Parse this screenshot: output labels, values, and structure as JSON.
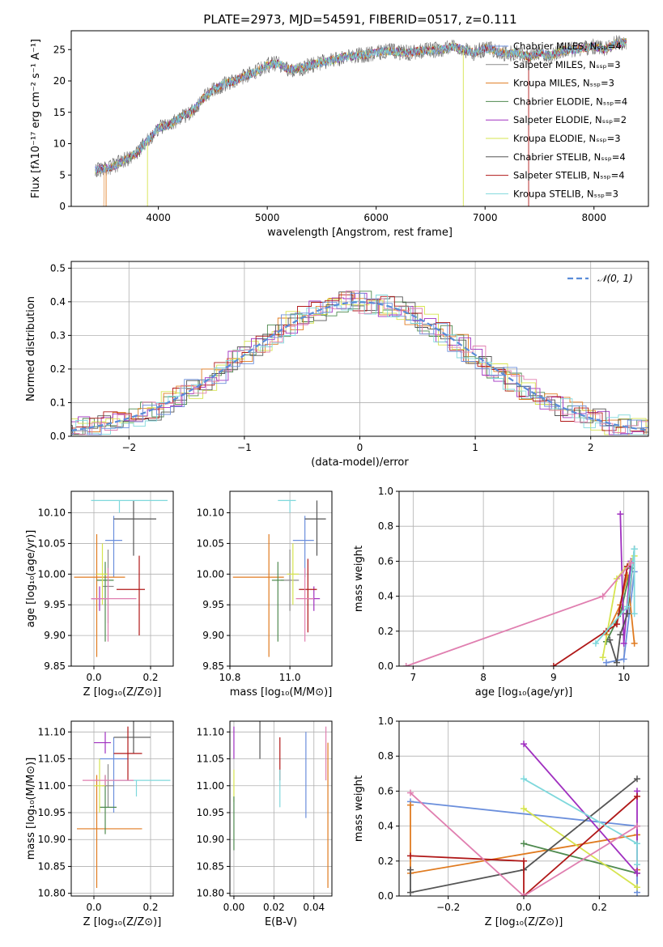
{
  "figure_title": "PLATE=2973, MJD=54591, FIBERID=0517, z=0.111",
  "colors": {
    "chabrier_miles": "#6b8fdc",
    "salpeter_miles": "#8b8b8b",
    "kroupa_miles": "#e07b20",
    "chabrier_elodie": "#4f8a4f",
    "salpeter_elodie": "#a030c0",
    "kroupa_elodie": "#d6e44f",
    "chabrier_stelib": "#555555",
    "salpeter_stelib": "#b01818",
    "kroupa_stelib": "#7fd8dc",
    "pink": "#e07fb0",
    "normal": "#5a8cd8"
  },
  "chart_data": [
    {
      "type": "line",
      "name": "spectrum",
      "xlabel": "wavelength [Angstrom, rest frame]",
      "ylabel": "Flux [fλ10⁻¹⁷ erg cm⁻² s⁻¹ A⁻¹]",
      "xlim": [
        3200,
        8500
      ],
      "ylim": [
        0,
        28
      ],
      "xticks": [
        4000,
        5000,
        6000,
        7000,
        8000
      ],
      "yticks": [
        0,
        5,
        10,
        15,
        20,
        25
      ],
      "grid": false,
      "legend_position": "right",
      "legend": [
        "Chabrier MILES, N_SSP=4",
        "Salpeter MILES, N_SSP=3",
        "Kroupa MILES, N_SSP=3",
        "Chabrier ELODIE, N_SSP=4",
        "Salpeter ELODIE, N_SSP=2",
        "Kroupa ELODIE, N_SSP=3",
        "Chabrier STELIB, N_SSP=4",
        "Salpeter STELIB, N_SSP=4",
        "Kroupa STELIB, N_SSP=3"
      ],
      "spectrum_x": [
        3400,
        3500,
        3600,
        3700,
        3800,
        3900,
        4000,
        4100,
        4200,
        4300,
        4400,
        4500,
        4600,
        4700,
        4800,
        4900,
        5000,
        5100,
        5200,
        5300,
        5400,
        5500,
        5600,
        5700,
        5800,
        5900,
        6000,
        6100,
        6200,
        6300,
        6400,
        6500,
        6600,
        6700,
        6800,
        6900,
        7000,
        7100,
        7200,
        7300,
        7400,
        7500,
        7600,
        7700,
        7800,
        7900,
        8000,
        8100,
        8200,
        8300
      ],
      "spectrum_y": [
        5.8,
        6.0,
        6.5,
        7.5,
        8.5,
        10.5,
        12.5,
        13.0,
        14.2,
        15.0,
        17.0,
        18.5,
        19.5,
        20.0,
        20.8,
        21.5,
        22.5,
        22.8,
        21.8,
        22.0,
        22.5,
        23.0,
        23.3,
        23.8,
        24.0,
        24.2,
        24.5,
        24.8,
        24.6,
        24.5,
        24.8,
        24.9,
        25.0,
        25.5,
        25.0,
        24.5,
        25.2,
        24.8,
        24.3,
        24.5,
        23.8,
        24.5,
        24.0,
        24.8,
        25.0,
        25.2,
        25.5,
        25.0,
        26.0,
        26.2
      ]
    },
    {
      "type": "line",
      "name": "residuals",
      "xlabel": "(data-model)/error",
      "ylabel": "Normed distribution",
      "xlim": [
        -2.5,
        2.5
      ],
      "ylim": [
        0,
        0.52
      ],
      "xticks": [
        -2,
        -1,
        0,
        1,
        2
      ],
      "yticks": [
        0.0,
        0.1,
        0.2,
        0.3,
        0.4,
        0.5
      ],
      "grid": true,
      "legend_position": "top-right",
      "legend": [
        "𝒩(0, 1)"
      ]
    },
    {
      "type": "scatter",
      "name": "age_vs_Z",
      "xlabel": "Z [log₁₀(Z/Z⊙)]",
      "ylabel": "age  [log₁₀(age/yr)]",
      "xlim": [
        -0.08,
        0.28
      ],
      "ylim": [
        9.85,
        10.135
      ],
      "xticks": [
        0.0,
        0.2
      ],
      "yticks": [
        9.85,
        9.9,
        9.95,
        10.0,
        10.05,
        10.1
      ],
      "grid": true,
      "points": [
        {
          "color": "#6b8fdc",
          "x": 0.07,
          "y": 10.055,
          "xerr": [
            0.03,
            0.03
          ],
          "yerr": [
            0.06,
            0.04
          ]
        },
        {
          "color": "#8b8b8b",
          "x": 0.05,
          "y": 9.98,
          "xerr": [
            0.02,
            0.02
          ],
          "yerr": [
            0.06,
            0.06
          ]
        },
        {
          "color": "#e07b20",
          "x": 0.01,
          "y": 9.995,
          "xerr": [
            0.08,
            0.1
          ],
          "yerr": [
            0.13,
            0.07
          ]
        },
        {
          "color": "#4f8a4f",
          "x": 0.04,
          "y": 9.99,
          "xerr": [
            0.03,
            0.03
          ],
          "yerr": [
            0.1,
            0.03
          ]
        },
        {
          "color": "#a030c0",
          "x": 0.02,
          "y": 9.96,
          "xerr": [
            0.03,
            0.03
          ],
          "yerr": [
            0.02,
            0.02
          ]
        },
        {
          "color": "#d6e44f",
          "x": 0.03,
          "y": 10.0,
          "xerr": [
            0.02,
            0.02
          ],
          "yerr": [
            0.05,
            0.05
          ]
        },
        {
          "color": "#555555",
          "x": 0.14,
          "y": 10.09,
          "xerr": [
            0.07,
            0.08
          ],
          "yerr": [
            0.06,
            0.03
          ]
        },
        {
          "color": "#b01818",
          "x": 0.16,
          "y": 9.975,
          "xerr": [
            0.08,
            0.02
          ],
          "yerr": [
            0.075,
            0.055
          ]
        },
        {
          "color": "#7fd8dc",
          "x": 0.09,
          "y": 10.12,
          "xerr": [
            0.1,
            0.17
          ],
          "yerr": [
            0.02,
            0.0
          ]
        },
        {
          "color": "#e07fb0",
          "x": 0.05,
          "y": 9.96,
          "xerr": [
            0.06,
            0.1
          ],
          "yerr": [
            0.07,
            0.05
          ]
        }
      ]
    },
    {
      "type": "scatter",
      "name": "age_vs_mass",
      "xlabel": "mass [log₁₀(M/M⊙)]",
      "ylabel": "",
      "xlim": [
        10.8,
        11.14
      ],
      "ylim": [
        9.85,
        10.135
      ],
      "xticks": [
        10.8,
        11.0
      ],
      "yticks": [
        9.85,
        9.9,
        9.95,
        10.0,
        10.05,
        10.1
      ],
      "grid": true,
      "points": [
        {
          "color": "#6b8fdc",
          "x": 11.05,
          "y": 10.055,
          "xerr": [
            0.04,
            0.03
          ],
          "yerr": [
            0.06,
            0.04
          ]
        },
        {
          "color": "#8b8b8b",
          "x": 11.0,
          "y": 9.99,
          "xerr": [
            0.03,
            0.03
          ],
          "yerr": [
            0.05,
            0.05
          ]
        },
        {
          "color": "#e07b20",
          "x": 10.93,
          "y": 9.995,
          "xerr": [
            0.12,
            0.05
          ],
          "yerr": [
            0.13,
            0.07
          ]
        },
        {
          "color": "#4f8a4f",
          "x": 10.96,
          "y": 9.99,
          "xerr": [
            0.02,
            0.02
          ],
          "yerr": [
            0.1,
            0.03
          ]
        },
        {
          "color": "#a030c0",
          "x": 11.08,
          "y": 9.96,
          "xerr": [
            0.02,
            0.02
          ],
          "yerr": [
            0.02,
            0.02
          ]
        },
        {
          "color": "#d6e44f",
          "x": 11.01,
          "y": 10.0,
          "xerr": [
            0.02,
            0.02
          ],
          "yerr": [
            0.05,
            0.05
          ]
        },
        {
          "color": "#555555",
          "x": 11.09,
          "y": 10.09,
          "xerr": [
            0.04,
            0.03
          ],
          "yerr": [
            0.06,
            0.03
          ]
        },
        {
          "color": "#b01818",
          "x": 11.06,
          "y": 9.975,
          "xerr": [
            0.03,
            0.03
          ],
          "yerr": [
            0.07,
            0.05
          ]
        },
        {
          "color": "#7fd8dc",
          "x": 11.0,
          "y": 10.12,
          "xerr": [
            0.04,
            0.02
          ],
          "yerr": [
            0.02,
            0.0
          ]
        },
        {
          "color": "#e07fb0",
          "x": 11.05,
          "y": 9.96,
          "xerr": [
            0.03,
            0.03
          ],
          "yerr": [
            0.07,
            0.05
          ]
        }
      ]
    },
    {
      "type": "line",
      "name": "weight_vs_age",
      "xlabel": "age  [log₁₀(age/yr)]",
      "ylabel": "mass weight",
      "xlim": [
        6.8,
        10.35
      ],
      "ylim": [
        0,
        1.0
      ],
      "xticks": [
        7,
        8,
        9,
        10
      ],
      "yticks": [
        0.0,
        0.2,
        0.4,
        0.6,
        0.8,
        1.0
      ],
      "grid": true,
      "series": [
        {
          "color": "#6b8fdc",
          "x": [
            9.75,
            10.0,
            10.15
          ],
          "y": [
            0.02,
            0.04,
            0.54
          ]
        },
        {
          "color": "#e07b20",
          "x": [
            9.75,
            9.95,
            10.05,
            10.15
          ],
          "y": [
            0.18,
            0.35,
            0.52,
            0.13
          ]
        },
        {
          "color": "#4f8a4f",
          "x": [
            9.75,
            9.95,
            10.1
          ],
          "y": [
            0.14,
            0.3,
            0.56
          ]
        },
        {
          "color": "#a030c0",
          "x": [
            9.95,
            10.0,
            10.1
          ],
          "y": [
            0.87,
            0.13,
            0.6
          ]
        },
        {
          "color": "#d6e44f",
          "x": [
            9.7,
            9.9,
            10.15
          ],
          "y": [
            0.05,
            0.5,
            0.63
          ]
        },
        {
          "color": "#555555",
          "x": [
            9.8,
            9.9,
            9.95,
            10.05,
            10.15
          ],
          "y": [
            0.15,
            0.02,
            0.18,
            0.3,
            0.67
          ]
        },
        {
          "color": "#b01818",
          "x": [
            9.0,
            9.75,
            9.9,
            10.05
          ],
          "y": [
            0.0,
            0.2,
            0.24,
            0.57
          ]
        },
        {
          "color": "#7fd8dc",
          "x": [
            9.6,
            10.05,
            10.15,
            10.15
          ],
          "y": [
            0.13,
            0.34,
            0.67,
            0.3
          ]
        },
        {
          "color": "#e07fb0",
          "x": [
            6.9,
            9.7,
            10.1
          ],
          "y": [
            0.0,
            0.4,
            0.59
          ]
        }
      ]
    },
    {
      "type": "scatter",
      "name": "mass_vs_Z",
      "xlabel": "Z [log₁₀(Z/Z⊙)]",
      "ylabel": "mass [log₁₀(M/M⊙)]",
      "xlim": [
        -0.08,
        0.28
      ],
      "ylim": [
        10.795,
        11.12
      ],
      "xticks": [
        0.0,
        0.2
      ],
      "yticks": [
        10.8,
        10.85,
        10.9,
        10.95,
        11.0,
        11.05,
        11.1
      ],
      "grid": true,
      "points": [
        {
          "color": "#6b8fdc",
          "x": 0.07,
          "y": 11.05,
          "xerr": [
            0.05,
            0.05
          ],
          "yerr": [
            0.1,
            0.04
          ]
        },
        {
          "color": "#8b8b8b",
          "x": 0.05,
          "y": 11.0,
          "xerr": [
            0.02,
            0.02
          ],
          "yerr": [
            0.04,
            0.04
          ]
        },
        {
          "color": "#e07b20",
          "x": 0.01,
          "y": 10.92,
          "xerr": [
            0.07,
            0.16
          ],
          "yerr": [
            0.11,
            0.1
          ]
        },
        {
          "color": "#4f8a4f",
          "x": 0.04,
          "y": 10.96,
          "xerr": [
            0.02,
            0.04
          ],
          "yerr": [
            0.05,
            0.06
          ]
        },
        {
          "color": "#a030c0",
          "x": 0.04,
          "y": 11.08,
          "xerr": [
            0.04,
            0.02
          ],
          "yerr": [
            0.02,
            0.02
          ]
        },
        {
          "color": "#d6e44f",
          "x": 0.02,
          "y": 11.0,
          "xerr": [
            0.02,
            0.02
          ],
          "yerr": [
            0.05,
            0.05
          ]
        },
        {
          "color": "#555555",
          "x": 0.14,
          "y": 11.09,
          "xerr": [
            0.07,
            0.06
          ],
          "yerr": [
            0.03,
            0.03
          ]
        },
        {
          "color": "#b01818",
          "x": 0.12,
          "y": 11.06,
          "xerr": [
            0.05,
            0.05
          ],
          "yerr": [
            0.05,
            0.05
          ]
        },
        {
          "color": "#7fd8dc",
          "x": 0.15,
          "y": 11.01,
          "xerr": [
            0.1,
            0.12
          ],
          "yerr": [
            0.03,
            0.0
          ]
        },
        {
          "color": "#e07fb0",
          "x": 0.04,
          "y": 11.01,
          "xerr": [
            0.08,
            0.1
          ],
          "yerr": [
            0.01,
            0.01
          ]
        }
      ]
    },
    {
      "type": "scatter",
      "name": "mass_vs_ebv",
      "xlabel": "E(B-V)",
      "ylabel": "",
      "xlim": [
        -0.002,
        0.049
      ],
      "ylim": [
        10.795,
        11.12
      ],
      "xticks": [
        0.0,
        0.02,
        0.04
      ],
      "yticks": [
        10.8,
        10.85,
        10.9,
        10.95,
        11.0,
        11.05,
        11.1
      ],
      "grid": true,
      "points": [
        {
          "color": "#555555",
          "x": 0.013,
          "y": 11.09,
          "yerr": [
            0.04,
            0.03
          ]
        },
        {
          "color": "#a030c0",
          "x": 0.0,
          "y": 11.08,
          "yerr": [
            0.03,
            0.03
          ]
        },
        {
          "color": "#b01818",
          "x": 0.023,
          "y": 11.05,
          "yerr": [
            0.04,
            0.04
          ]
        },
        {
          "color": "#7fd8dc",
          "x": 0.023,
          "y": 11.0,
          "yerr": [
            0.04,
            0.03
          ]
        },
        {
          "color": "#d6e44f",
          "x": 0.0,
          "y": 11.0,
          "yerr": [
            0.03,
            0.03
          ]
        },
        {
          "color": "#6b8fdc",
          "x": 0.036,
          "y": 11.02,
          "yerr": [
            0.08,
            0.08
          ]
        },
        {
          "color": "#e07fb0",
          "x": 0.046,
          "y": 11.06,
          "yerr": [
            0.05,
            0.05
          ]
        },
        {
          "color": "#e07b20",
          "x": 0.047,
          "y": 10.92,
          "yerr": [
            0.11,
            0.16
          ]
        },
        {
          "color": "#4f8a4f",
          "x": 0.0,
          "y": 10.93,
          "yerr": [
            0.05,
            0.05
          ]
        }
      ]
    },
    {
      "type": "line",
      "name": "weight_vs_Z",
      "xlabel": "Z [log₁₀(Z/Z⊙)]",
      "ylabel": "mass weight",
      "xlim": [
        -0.33,
        0.33
      ],
      "ylim": [
        0,
        1.0
      ],
      "xticks": [
        -0.2,
        0.0,
        0.2
      ],
      "yticks": [
        0.0,
        0.2,
        0.4,
        0.6,
        0.8,
        1.0
      ],
      "grid": true,
      "series": [
        {
          "color": "#6b8fdc",
          "x": [
            -0.3,
            0.3,
            0.3
          ],
          "y": [
            0.54,
            0.4,
            0.02
          ]
        },
        {
          "color": "#e07b20",
          "x": [
            -0.3,
            -0.3,
            0.3,
            0.3
          ],
          "y": [
            0.52,
            0.13,
            0.35,
            0.15
          ]
        },
        {
          "color": "#4f8a4f",
          "x": [
            0.0,
            0.3
          ],
          "y": [
            0.3,
            0.13
          ]
        },
        {
          "color": "#a030c0",
          "x": [
            0.0,
            0.3,
            0.3
          ],
          "y": [
            0.87,
            0.13,
            0.6
          ]
        },
        {
          "color": "#d6e44f",
          "x": [
            0.0,
            0.3
          ],
          "y": [
            0.5,
            0.05
          ]
        },
        {
          "color": "#555555",
          "x": [
            -0.3,
            -0.3,
            0.0,
            0.3
          ],
          "y": [
            0.15,
            0.02,
            0.15,
            0.67
          ]
        },
        {
          "color": "#b01818",
          "x": [
            -0.3,
            0.0,
            0.0,
            0.3
          ],
          "y": [
            0.23,
            0.2,
            0.0,
            0.57
          ]
        },
        {
          "color": "#7fd8dc",
          "x": [
            0.0,
            0.3,
            0.3
          ],
          "y": [
            0.67,
            0.3,
            0.18
          ]
        },
        {
          "color": "#e07fb0",
          "x": [
            -0.3,
            0.0,
            0.3
          ],
          "y": [
            0.59,
            0.0,
            0.4
          ]
        }
      ]
    }
  ]
}
